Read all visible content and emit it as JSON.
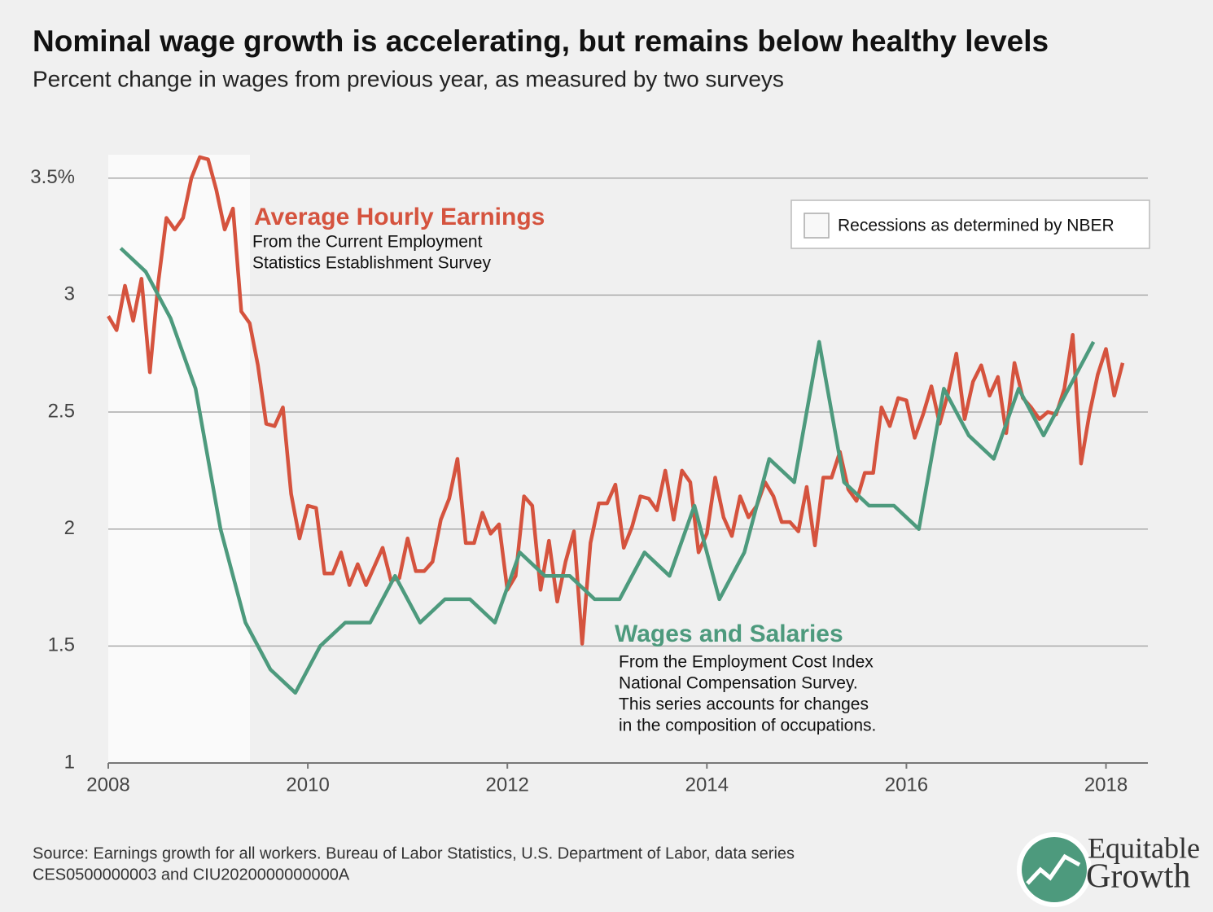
{
  "chart_data": {
    "type": "line",
    "title": "Nominal wage growth is accelerating, but remains below healthy levels",
    "subtitle": "Percent change in wages from previous year, as measured by two surveys",
    "xlim": [
      2008,
      2018.42
    ],
    "xticks": [
      2008,
      2010,
      2012,
      2014,
      2016,
      2018
    ],
    "ylim": [
      1,
      3.6
    ],
    "yticks": [
      1,
      1.5,
      2,
      2.5,
      3,
      {
        "value": 3.5,
        "label": "3.5%"
      }
    ],
    "grid": true,
    "recessions": [
      [
        2008,
        2009.42
      ]
    ],
    "legend": "Recessions as determined by NBER",
    "legend_position": "upper right",
    "series": [
      {
        "name": "Average Hourly Earnings",
        "color": "#d5533e",
        "note": [
          "From the Current Employment",
          "Statistics Establishment Survey"
        ],
        "x": [
          2008,
          2008.083,
          2008.167,
          2008.25,
          2008.333,
          2008.417,
          2008.5,
          2008.583,
          2008.667,
          2008.75,
          2008.833,
          2008.917,
          2009,
          2009.083,
          2009.167,
          2009.25,
          2009.333,
          2009.417,
          2009.5,
          2009.583,
          2009.667,
          2009.75,
          2009.833,
          2009.917,
          2010,
          2010.083,
          2010.167,
          2010.25,
          2010.333,
          2010.417,
          2010.5,
          2010.583,
          2010.667,
          2010.75,
          2010.833,
          2010.917,
          2011,
          2011.083,
          2011.167,
          2011.25,
          2011.333,
          2011.417,
          2011.5,
          2011.583,
          2011.667,
          2011.75,
          2011.833,
          2011.917,
          2012,
          2012.083,
          2012.167,
          2012.25,
          2012.333,
          2012.417,
          2012.5,
          2012.583,
          2012.667,
          2012.75,
          2012.833,
          2012.917,
          2013,
          2013.083,
          2013.167,
          2013.25,
          2013.333,
          2013.417,
          2013.5,
          2013.583,
          2013.667,
          2013.75,
          2013.833,
          2013.917,
          2014,
          2014.083,
          2014.167,
          2014.25,
          2014.333,
          2014.417,
          2014.5,
          2014.583,
          2014.667,
          2014.75,
          2014.833,
          2014.917,
          2015,
          2015.083,
          2015.167,
          2015.25,
          2015.333,
          2015.417,
          2015.5,
          2015.583,
          2015.667,
          2015.75,
          2015.833,
          2015.917,
          2016,
          2016.083,
          2016.167,
          2016.25,
          2016.333,
          2016.417,
          2016.5,
          2016.583,
          2016.667,
          2016.75,
          2016.833,
          2016.917,
          2017,
          2017.083,
          2017.167,
          2017.25,
          2017.333,
          2017.417,
          2017.5,
          2017.583,
          2017.667,
          2017.75,
          2017.833,
          2017.917,
          2018,
          2018.083,
          2018.167
        ],
        "values": [
          2.91,
          2.85,
          3.04,
          2.89,
          3.07,
          2.67,
          3.05,
          3.33,
          3.28,
          3.33,
          3.5,
          3.59,
          3.58,
          3.45,
          3.28,
          3.37,
          2.93,
          2.88,
          2.7,
          2.45,
          2.44,
          2.52,
          2.15,
          1.96,
          2.1,
          2.09,
          1.81,
          1.81,
          1.9,
          1.76,
          1.85,
          1.76,
          1.84,
          1.92,
          1.78,
          1.79,
          1.96,
          1.82,
          1.82,
          1.86,
          2.04,
          2.13,
          2.3,
          1.94,
          1.94,
          2.07,
          1.98,
          2.02,
          1.74,
          1.8,
          2.14,
          2.1,
          1.74,
          1.95,
          1.69,
          1.86,
          1.99,
          1.51,
          1.94,
          2.11,
          2.11,
          2.19,
          1.92,
          2.01,
          2.14,
          2.13,
          2.08,
          2.25,
          2.04,
          2.25,
          2.2,
          1.9,
          1.98,
          2.22,
          2.05,
          1.97,
          2.14,
          2.05,
          2.1,
          2.2,
          2.14,
          2.03,
          2.03,
          1.99,
          2.18,
          1.93,
          2.22,
          2.22,
          2.33,
          2.17,
          2.12,
          2.24,
          2.24,
          2.52,
          2.44,
          2.56,
          2.55,
          2.39,
          2.49,
          2.61,
          2.45,
          2.58,
          2.75,
          2.47,
          2.63,
          2.7,
          2.57,
          2.65,
          2.41,
          2.71,
          2.56,
          2.52,
          2.47,
          2.5,
          2.49,
          2.6,
          2.83,
          2.28,
          2.49,
          2.66,
          2.77,
          2.57,
          2.71
        ]
      },
      {
        "name": "Wages and Salaries",
        "color": "#4d9a7d",
        "note": [
          "From the Employment Cost Index",
          "National Compensation Survey.",
          "This series accounts for changes",
          "in the composition of occupations."
        ],
        "x": [
          2008.125,
          2008.375,
          2008.625,
          2008.875,
          2009.125,
          2009.375,
          2009.625,
          2009.875,
          2010.125,
          2010.375,
          2010.625,
          2010.875,
          2011.125,
          2011.375,
          2011.625,
          2011.875,
          2012.125,
          2012.375,
          2012.625,
          2012.875,
          2013.125,
          2013.375,
          2013.625,
          2013.875,
          2014.125,
          2014.375,
          2014.625,
          2014.875,
          2015.125,
          2015.375,
          2015.625,
          2015.875,
          2016.125,
          2016.375,
          2016.625,
          2016.875,
          2017.125,
          2017.375,
          2017.625,
          2017.875
        ],
        "values": [
          3.2,
          3.1,
          2.9,
          2.6,
          2.0,
          1.6,
          1.4,
          1.3,
          1.5,
          1.6,
          1.6,
          1.8,
          1.6,
          1.7,
          1.7,
          1.6,
          1.9,
          1.8,
          1.8,
          1.7,
          1.7,
          1.9,
          1.8,
          2.1,
          1.7,
          1.9,
          2.3,
          2.2,
          2.8,
          2.2,
          2.1,
          2.1,
          2.0,
          2.6,
          2.4,
          2.3,
          2.6,
          2.4,
          2.6,
          2.8
        ]
      }
    ],
    "source": [
      "Source: Earnings growth for all workers. Bureau of Labor Statistics, U.S. Department of Labor, data series",
      "CES0500000003 and CIU2020000000000A"
    ],
    "logo": [
      "Equitable",
      "Growth"
    ]
  }
}
